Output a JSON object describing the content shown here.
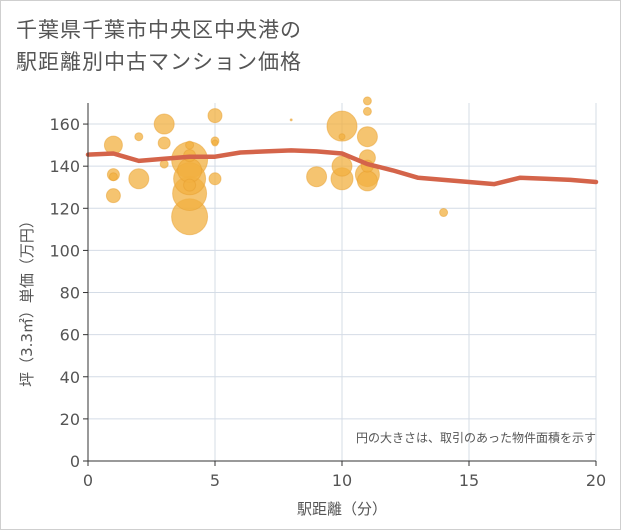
{
  "title_line1": "千葉県千葉市中央区中央港の",
  "title_line2": "駅距離別中古マンション価格",
  "chart_data": {
    "type": "scatter",
    "title": "千葉県千葉市中央区中央港の駅距離別中古マンション価格",
    "xlabel": "駅距離（分）",
    "ylabel": "坪（3.3㎡）単価（万円）",
    "xlim": [
      0,
      20
    ],
    "ylim": [
      0,
      170
    ],
    "xticks": [
      0,
      5,
      10,
      15,
      20
    ],
    "yticks": [
      0,
      20,
      40,
      60,
      80,
      100,
      120,
      140,
      160
    ],
    "grid": true,
    "note": "円の大きさは、取引のあった物件面積を示す",
    "bubble_color": "#f2b040",
    "line_color": "#d4644a",
    "points": [
      {
        "x": 1,
        "y": 150,
        "size": 9
      },
      {
        "x": 1,
        "y": 136,
        "size": 6
      },
      {
        "x": 1,
        "y": 135,
        "size": 4
      },
      {
        "x": 1,
        "y": 126,
        "size": 7
      },
      {
        "x": 2,
        "y": 154,
        "size": 4
      },
      {
        "x": 2,
        "y": 134,
        "size": 10
      },
      {
        "x": 3,
        "y": 160,
        "size": 10
      },
      {
        "x": 3,
        "y": 151,
        "size": 6
      },
      {
        "x": 3,
        "y": 141,
        "size": 4
      },
      {
        "x": 4,
        "y": 150,
        "size": 4
      },
      {
        "x": 4,
        "y": 145,
        "size": 6
      },
      {
        "x": 4,
        "y": 143,
        "size": 18
      },
      {
        "x": 4,
        "y": 138,
        "size": 12
      },
      {
        "x": 4,
        "y": 134,
        "size": 16
      },
      {
        "x": 4,
        "y": 131,
        "size": 6
      },
      {
        "x": 4,
        "y": 127,
        "size": 17
      },
      {
        "x": 4,
        "y": 116,
        "size": 18
      },
      {
        "x": 5,
        "y": 164,
        "size": 7
      },
      {
        "x": 5,
        "y": 152,
        "size": 4
      },
      {
        "x": 5,
        "y": 151,
        "size": 3
      },
      {
        "x": 5,
        "y": 134,
        "size": 6
      },
      {
        "x": 8,
        "y": 162,
        "size": 1
      },
      {
        "x": 9,
        "y": 135,
        "size": 10
      },
      {
        "x": 10,
        "y": 159,
        "size": 15
      },
      {
        "x": 10,
        "y": 154,
        "size": 3
      },
      {
        "x": 10,
        "y": 140,
        "size": 10
      },
      {
        "x": 10,
        "y": 134,
        "size": 11
      },
      {
        "x": 11,
        "y": 171,
        "size": 4
      },
      {
        "x": 11,
        "y": 166,
        "size": 4
      },
      {
        "x": 11,
        "y": 154,
        "size": 10
      },
      {
        "x": 11,
        "y": 144,
        "size": 8
      },
      {
        "x": 11,
        "y": 140,
        "size": 6
      },
      {
        "x": 11,
        "y": 136,
        "size": 12
      },
      {
        "x": 11,
        "y": 133,
        "size": 10
      },
      {
        "x": 14,
        "y": 118,
        "size": 4
      }
    ],
    "trend": {
      "x": [
        0,
        1,
        2,
        3,
        4,
        5,
        6,
        7,
        8,
        9,
        10,
        11,
        12,
        13,
        14,
        15,
        16,
        17,
        18,
        19,
        20
      ],
      "y": [
        145.5,
        146,
        142.5,
        143.5,
        144.5,
        144.5,
        146.5,
        147,
        147.5,
        147,
        146,
        141,
        138,
        134.5,
        133.5,
        132.5,
        131.5,
        134.5,
        134,
        133.5,
        132.5
      ]
    }
  }
}
